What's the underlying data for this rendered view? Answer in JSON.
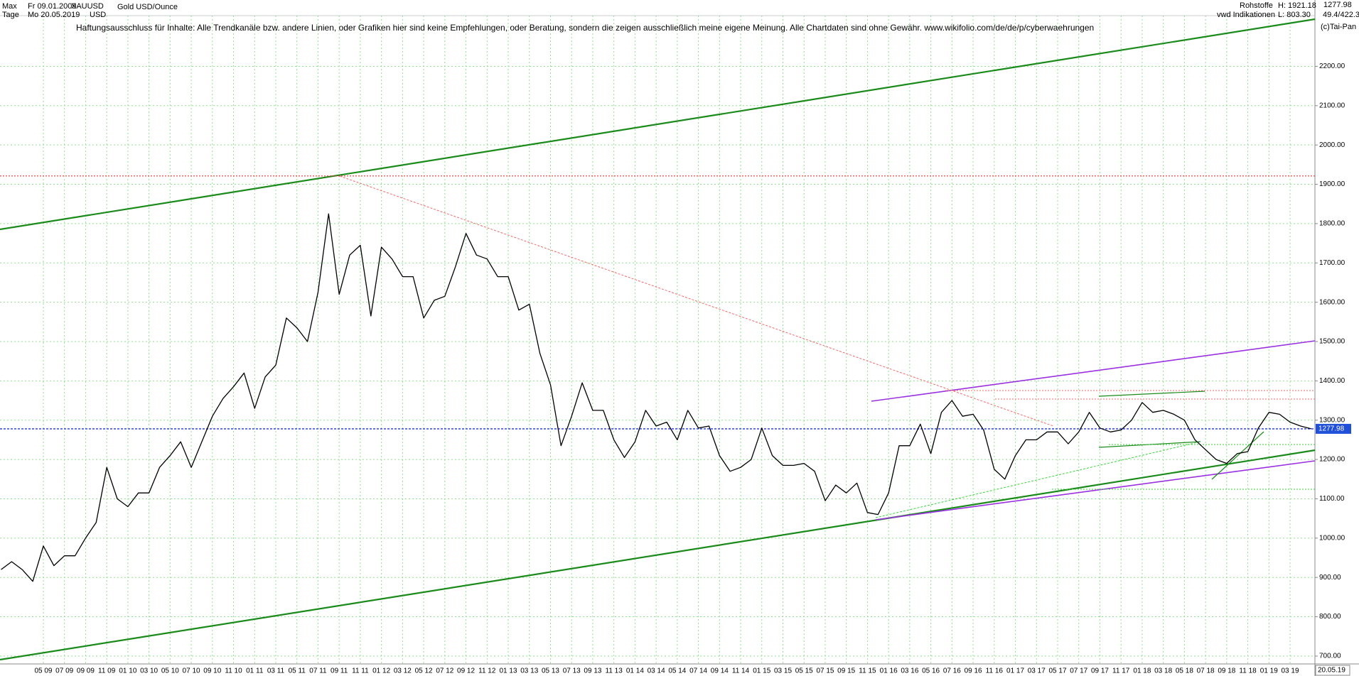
{
  "chart_data": {
    "type": "line",
    "title": "Gold USD/Ounce",
    "symbol": "XAUUSD",
    "currency": "USD",
    "period": "Max",
    "interval": "Tage",
    "start_date": "Fr 09.01.2009",
    "end_date": "Mo 20.05.2019",
    "disclaimer": "Haftungsausschluss für Inhalte: Alle Trendkanäle bzw. andere Linien, oder Grafiken hier sind keine Empfehlungen, oder Beratung, sondern die zeigen ausschließlich meine eigene Meinung. Alle Chartdaten sind ohne Gewähr.  www.wikifolio.com/de/de/p/cyberwaehrungen",
    "group": "Rohstoffe",
    "source": "vwd Indikationen",
    "high": {
      "value": 1921.18,
      "label": "H: 1921.18"
    },
    "low": "L: 803.30",
    "last": 1277.98,
    "range_text": "49.4/422.3",
    "copyright": "(c)Tai-Pan",
    "categories": [
      null,
      null,
      null,
      null,
      "05 09",
      null,
      "07 09",
      null,
      "09 09",
      null,
      "11 09",
      null,
      "01 10",
      null,
      "03 10",
      null,
      "05 10",
      null,
      "07 10",
      null,
      "09 10",
      null,
      "11 10",
      null,
      "01 11",
      null,
      "03 11",
      null,
      "05 11",
      null,
      "07 11",
      null,
      "09 11",
      null,
      "11 11",
      null,
      "01 12",
      null,
      "03 12",
      null,
      "05 12",
      null,
      "07 12",
      null,
      "09 12",
      null,
      "11 12",
      null,
      "01 13",
      null,
      "03 13",
      null,
      "05 13",
      null,
      "07 13",
      null,
      "09 13",
      null,
      "11 13",
      null,
      "01 14",
      null,
      "03 14",
      null,
      "05 14",
      null,
      "07 14",
      null,
      "09 14",
      null,
      "11 14",
      null,
      "01 15",
      null,
      "03 15",
      null,
      "05 15",
      null,
      "07 15",
      null,
      "09 15",
      null,
      "11 15",
      null,
      "01 16",
      null,
      "03 16",
      null,
      "05 16",
      null,
      "07 16",
      null,
      "09 16",
      null,
      "11 16",
      null,
      "01 17",
      null,
      "03 17",
      null,
      "05 17",
      null,
      "07 17",
      null,
      "09 17",
      null,
      "11 17",
      null,
      "01 18",
      null,
      "03 18",
      null,
      "05 18",
      null,
      "07 18",
      null,
      "09 18",
      null,
      "11 18",
      null,
      "01 19",
      null,
      "03 19",
      null,
      "20.05.19"
    ],
    "values": [
      920,
      940,
      920,
      890,
      980,
      930,
      955,
      955,
      1000,
      1040,
      1180,
      1100,
      1080,
      1115,
      1115,
      1180,
      1210,
      1245,
      1180,
      1245,
      1310,
      1355,
      1385,
      1420,
      1330,
      1410,
      1440,
      1560,
      1535,
      1500,
      1625,
      1825,
      1620,
      1720,
      1745,
      1565,
      1740,
      1710,
      1665,
      1665,
      1560,
      1605,
      1615,
      1690,
      1775,
      1720,
      1710,
      1665,
      1665,
      1580,
      1595,
      1470,
      1390,
      1235,
      1310,
      1395,
      1325,
      1325,
      1250,
      1205,
      1245,
      1325,
      1285,
      1295,
      1250,
      1325,
      1280,
      1285,
      1210,
      1170,
      1180,
      1200,
      1280,
      1210,
      1185,
      1185,
      1190,
      1170,
      1095,
      1135,
      1115,
      1140,
      1065,
      1060,
      1115,
      1235,
      1235,
      1290,
      1215,
      1320,
      1350,
      1310,
      1315,
      1275,
      1175,
      1150,
      1210,
      1250,
      1250,
      1270,
      1270,
      1240,
      1270,
      1320,
      1280,
      1270,
      1275,
      1300,
      1345,
      1320,
      1325,
      1315,
      1300,
      1250,
      1225,
      1200,
      1190,
      1215,
      1220,
      1280,
      1320,
      1315,
      1295,
      1285,
      1278
    ],
    "color": "#000000",
    "ylim": [
      680,
      2320
    ],
    "yticks": [
      {
        "value": 700,
        "label": "700.00"
      },
      {
        "value": 800,
        "label": "800.00"
      },
      {
        "value": 900,
        "label": "900.00"
      },
      {
        "value": 1000,
        "label": "1000.00"
      },
      {
        "value": 1100,
        "label": "1100.00"
      },
      {
        "value": 1200,
        "label": "1200.00"
      },
      {
        "value": 1300,
        "label": "1300.00"
      },
      {
        "value": 1400,
        "label": "1400.00"
      },
      {
        "value": 1500,
        "label": "1500.00"
      },
      {
        "value": 1600,
        "label": "1600.00"
      },
      {
        "value": 1700,
        "label": "1700.00"
      },
      {
        "value": 1800,
        "label": "1800.00"
      },
      {
        "value": 1900,
        "label": "1900.00"
      },
      {
        "value": 2000,
        "label": "2000.00"
      },
      {
        "value": 2100,
        "label": "2100.00"
      },
      {
        "value": 2200,
        "label": "2200.00"
      }
    ],
    "grid": true
  }
}
